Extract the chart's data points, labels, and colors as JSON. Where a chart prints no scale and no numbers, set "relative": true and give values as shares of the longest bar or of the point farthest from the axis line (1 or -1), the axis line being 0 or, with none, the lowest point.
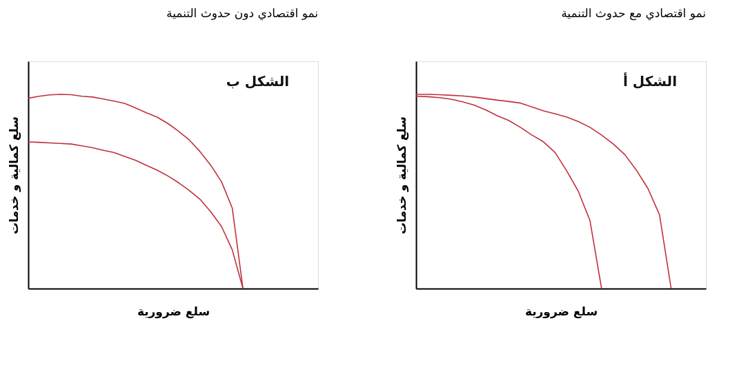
{
  "chart_data": [
    {
      "type": "line",
      "title": "نمو اقتصادي دون حدوث التنمية",
      "xlabel": "سلع ضرورية",
      "ylabel": "سلع كمالية و خدمات",
      "annotations": [
        "الشكل ب"
      ],
      "relative": true,
      "tick_labels": false,
      "grid": false,
      "legend": false,
      "marker": "none",
      "line_style": "solid",
      "categories": [
        null,
        null,
        null,
        null,
        null,
        null,
        null,
        null,
        null,
        null,
        null,
        null,
        null,
        null,
        null,
        null,
        null,
        null,
        null,
        null,
        null,
        null,
        null,
        null,
        null,
        null,
        null,
        null
      ],
      "series": [
        {
          "color": "#c0303a",
          "values": [
            0.98,
            0.99,
            0.997,
            1.0,
            0.998,
            0.99,
            0.986,
            0.976,
            0.965,
            0.953,
            0.93,
            0.905,
            0.883,
            0.85,
            0.81,
            0.765,
            0.705,
            0.635,
            0.55,
            0.415,
            0,
            null,
            null,
            null,
            null,
            null,
            null,
            null
          ]
        },
        {
          "color": "#c0303a",
          "values": [
            0.755,
            0.753,
            0.75,
            0.747,
            0.744,
            0.735,
            0.725,
            0.712,
            0.7,
            0.68,
            0.66,
            0.635,
            0.61,
            0.58,
            0.545,
            0.505,
            0.46,
            0.395,
            0.32,
            0.2,
            0,
            null,
            null,
            null,
            null,
            null,
            null,
            null
          ]
        }
      ]
    },
    {
      "type": "line",
      "title": "نمو اقتصادي مع حدوث التنمية",
      "xlabel": "سلع ضرورية",
      "ylabel": "سلع كمالية و خدمات",
      "annotations": [
        "الشكل أ"
      ],
      "relative": true,
      "tick_labels": false,
      "grid": false,
      "legend": false,
      "marker": "none",
      "line_style": "solid",
      "categories": [
        null,
        null,
        null,
        null,
        null,
        null,
        null,
        null,
        null,
        null,
        null,
        null,
        null,
        null,
        null,
        null,
        null,
        null,
        null,
        null,
        null,
        null,
        null,
        null,
        null,
        null
      ],
      "series": [
        {
          "color": "#c0303a",
          "values": [
            1.0,
            1.0,
            0.998,
            0.995,
            0.992,
            0.986,
            0.978,
            0.97,
            0.963,
            0.955,
            0.935,
            0.915,
            0.9,
            0.883,
            0.86,
            0.83,
            0.79,
            0.745,
            0.69,
            0.61,
            0.515,
            0.38,
            0,
            null,
            null,
            null
          ]
        },
        {
          "color": "#c0303a",
          "values": [
            0.99,
            0.988,
            0.983,
            0.975,
            0.962,
            0.945,
            0.92,
            0.89,
            0.865,
            0.83,
            0.79,
            0.755,
            0.7,
            0.605,
            0.5,
            0.35,
            0,
            null,
            null,
            null,
            null,
            null,
            null,
            null,
            null,
            null
          ]
        }
      ]
    }
  ]
}
